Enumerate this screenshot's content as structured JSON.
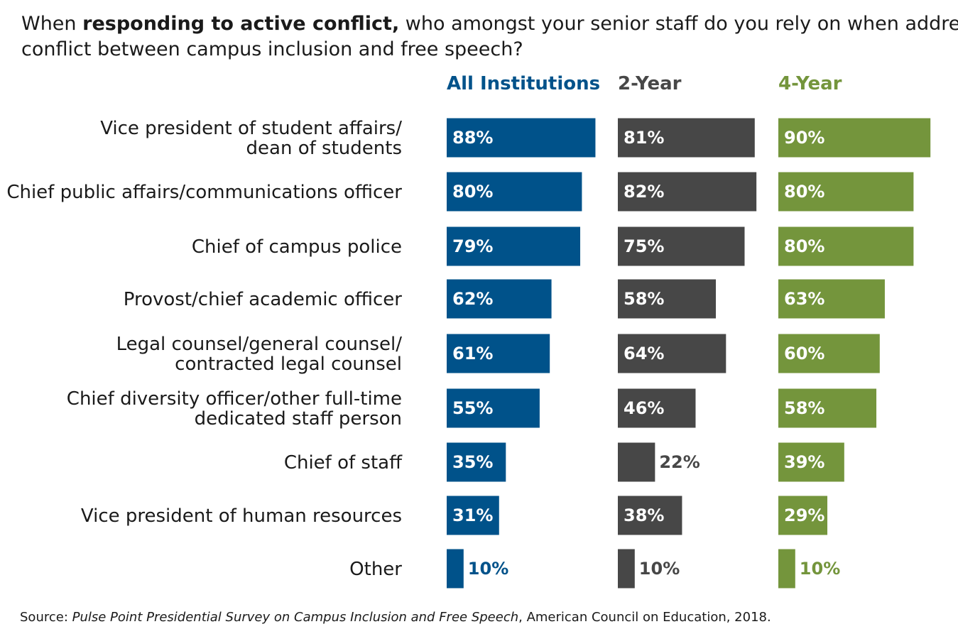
{
  "question": {
    "part1": "When ",
    "bold": "responding to active conflict,",
    "part2": " who amongst your senior staff do you rely on when addressing",
    "line2": "conflict between campus inclusion and free speech?"
  },
  "source": {
    "prefix": "Source: ",
    "title": "Pulse Point Presidential Survey on Campus Inclusion and Free Speech",
    "suffix": ", American Council on Education, 2018."
  },
  "chart_data": {
    "type": "bar",
    "orientation": "horizontal",
    "value_format": "percent",
    "categories": [
      [
        "Vice president of student affairs/",
        "dean of students"
      ],
      [
        "Chief public affairs/communications officer"
      ],
      [
        "Chief of campus police"
      ],
      [
        "Provost/chief academic officer"
      ],
      [
        "Legal counsel/general counsel/",
        "contracted legal counsel"
      ],
      [
        "Chief diversity officer/other full-time",
        "dedicated staff person"
      ],
      [
        "Chief of staff"
      ],
      [
        "Vice president of human resources"
      ],
      [
        "Other"
      ]
    ],
    "series": [
      {
        "name": "All Institutions",
        "color": "#00528a",
        "values": [
          88,
          80,
          79,
          62,
          61,
          55,
          35,
          31,
          10
        ]
      },
      {
        "name": "2-Year",
        "color": "#474747",
        "values": [
          81,
          82,
          75,
          58,
          64,
          46,
          22,
          38,
          10
        ]
      },
      {
        "name": "4-Year",
        "color": "#74953c",
        "values": [
          90,
          80,
          80,
          63,
          60,
          58,
          39,
          29,
          10
        ]
      }
    ],
    "data_labels": [
      [
        "88%",
        "80%",
        "79%",
        "62%",
        "61%",
        "55%",
        "35%",
        "31%",
        "10%"
      ],
      [
        "81%",
        "82%",
        "75%",
        "58%",
        "64%",
        "46%",
        "22%",
        "38%",
        "10%"
      ],
      [
        "90%",
        "80%",
        "80%",
        "63%",
        "60%",
        "58%",
        "39%",
        "29%",
        "10%"
      ]
    ],
    "xlim": [
      0,
      100
    ],
    "grid": false,
    "legend": "column headers above bars"
  }
}
